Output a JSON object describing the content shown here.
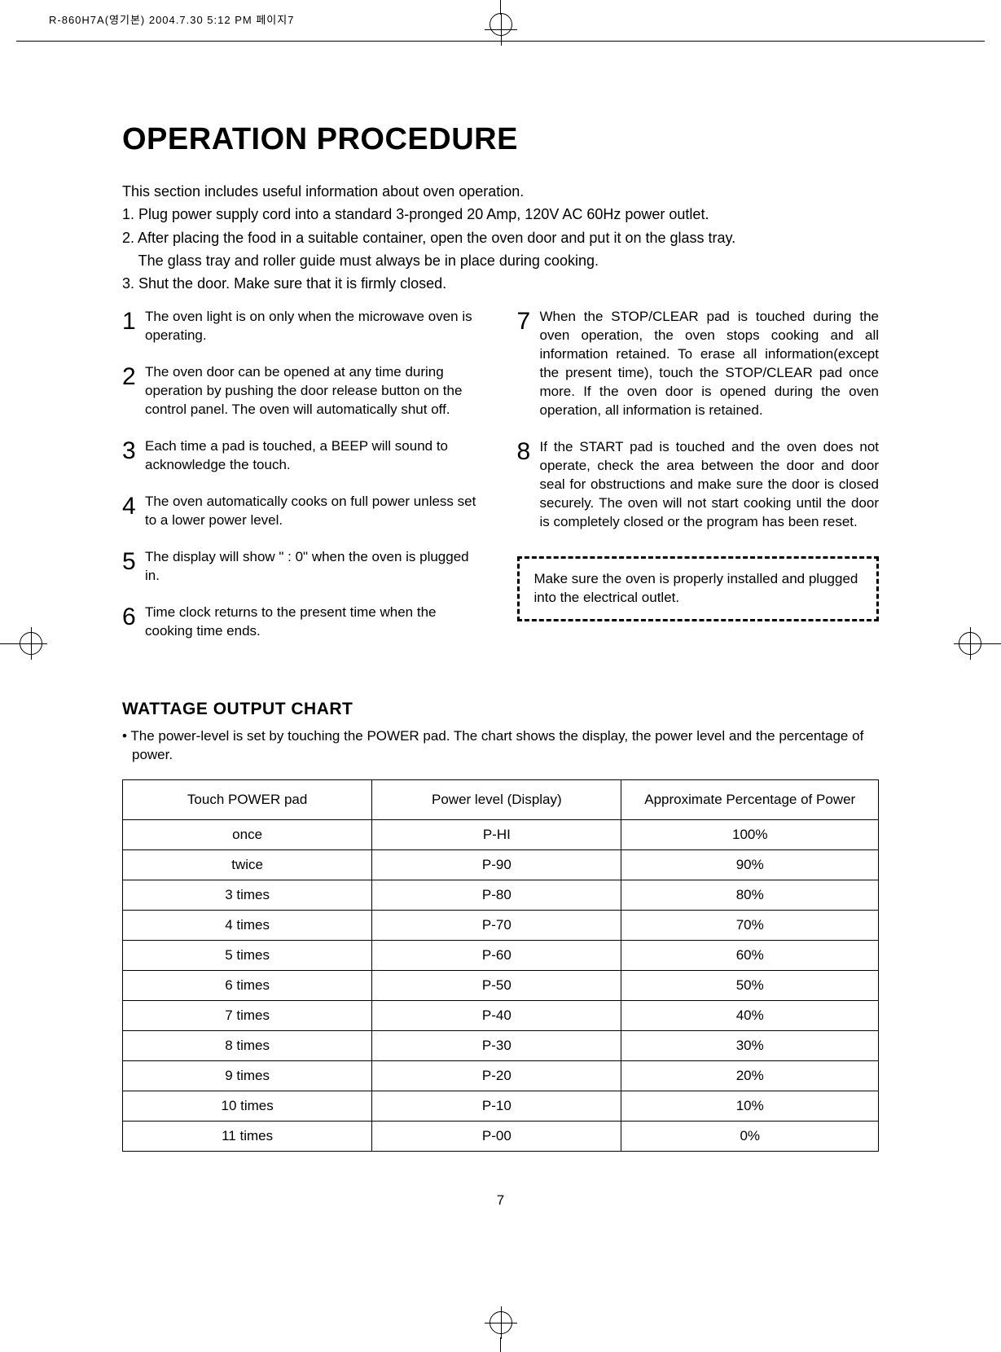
{
  "print_header": "R-860H7A(영기본)  2004.7.30 5:12 PM  페이지7",
  "heading": "OPERATION PROCEDURE",
  "intro": {
    "lead": "This section includes useful information about oven operation.",
    "steps": [
      "1. Plug power supply cord into a standard 3-pronged 20 Amp, 120V AC 60Hz power outlet.",
      "2. After placing the food in a suitable container, open the oven door and put it on the glass tray.",
      "    The glass tray and roller guide must always be in place during cooking.",
      "3. Shut the door. Make sure that it is firmly closed."
    ]
  },
  "left_items": [
    {
      "n": "1",
      "t": "The oven light is on only when the microwave oven is operating."
    },
    {
      "n": "2",
      "t": "The oven door can be opened at any time during operation by pushing the door release button on the control panel. The oven will automatically shut off."
    },
    {
      "n": "3",
      "t": "Each time a pad is touched, a BEEP will sound to acknowledge the touch."
    },
    {
      "n": "4",
      "t": "The oven automatically cooks on full power unless set to a lower power level."
    },
    {
      "n": "5",
      "t": "The display will show \" : 0\" when the oven is plugged in."
    },
    {
      "n": "6",
      "t": "Time clock returns to the present time when the cooking time ends."
    }
  ],
  "right_items": [
    {
      "n": "7",
      "t": "When the STOP/CLEAR pad is touched during the oven operation, the oven stops cooking and all information retained. To erase all information(except the present time), touch the  STOP/CLEAR pad once more. If the oven door is opened during the oven operation, all information is retained."
    },
    {
      "n": "8",
      "t": "If the START pad is touched and the oven does not operate, check the area between the door and door seal for obstructions and make sure the door is closed securely.  The oven will not start cooking until the door is completely closed or the program has been reset."
    }
  ],
  "note_box": "Make sure the oven is properly installed and plugged into the electrical outlet.",
  "chart": {
    "title": "WATTAGE OUTPUT CHART",
    "intro": "• The power-level is set by touching the POWER pad. The chart shows the display, the power level and the percentage of power.",
    "columns": [
      "Touch POWER pad",
      "Power level (Display)",
      "Approximate Percentage of Power"
    ],
    "rows": [
      [
        "once",
        "P-HI",
        "100%"
      ],
      [
        "twice",
        "P-90",
        "90%"
      ],
      [
        "3 times",
        "P-80",
        "80%"
      ],
      [
        "4 times",
        "P-70",
        "70%"
      ],
      [
        "5 times",
        "P-60",
        "60%"
      ],
      [
        "6 times",
        "P-50",
        "50%"
      ],
      [
        "7 times",
        "P-40",
        "40%"
      ],
      [
        "8 times",
        "P-30",
        "30%"
      ],
      [
        "9 times",
        "P-20",
        "20%"
      ],
      [
        "10 times",
        "P-10",
        "10%"
      ],
      [
        "11 times",
        "P-00",
        "0%"
      ]
    ],
    "col_widths": [
      "33%",
      "33%",
      "34%"
    ],
    "border_color": "#000000",
    "font_size": 17
  },
  "page_number": "7",
  "colors": {
    "background": "#ffffff",
    "text": "#000000"
  }
}
